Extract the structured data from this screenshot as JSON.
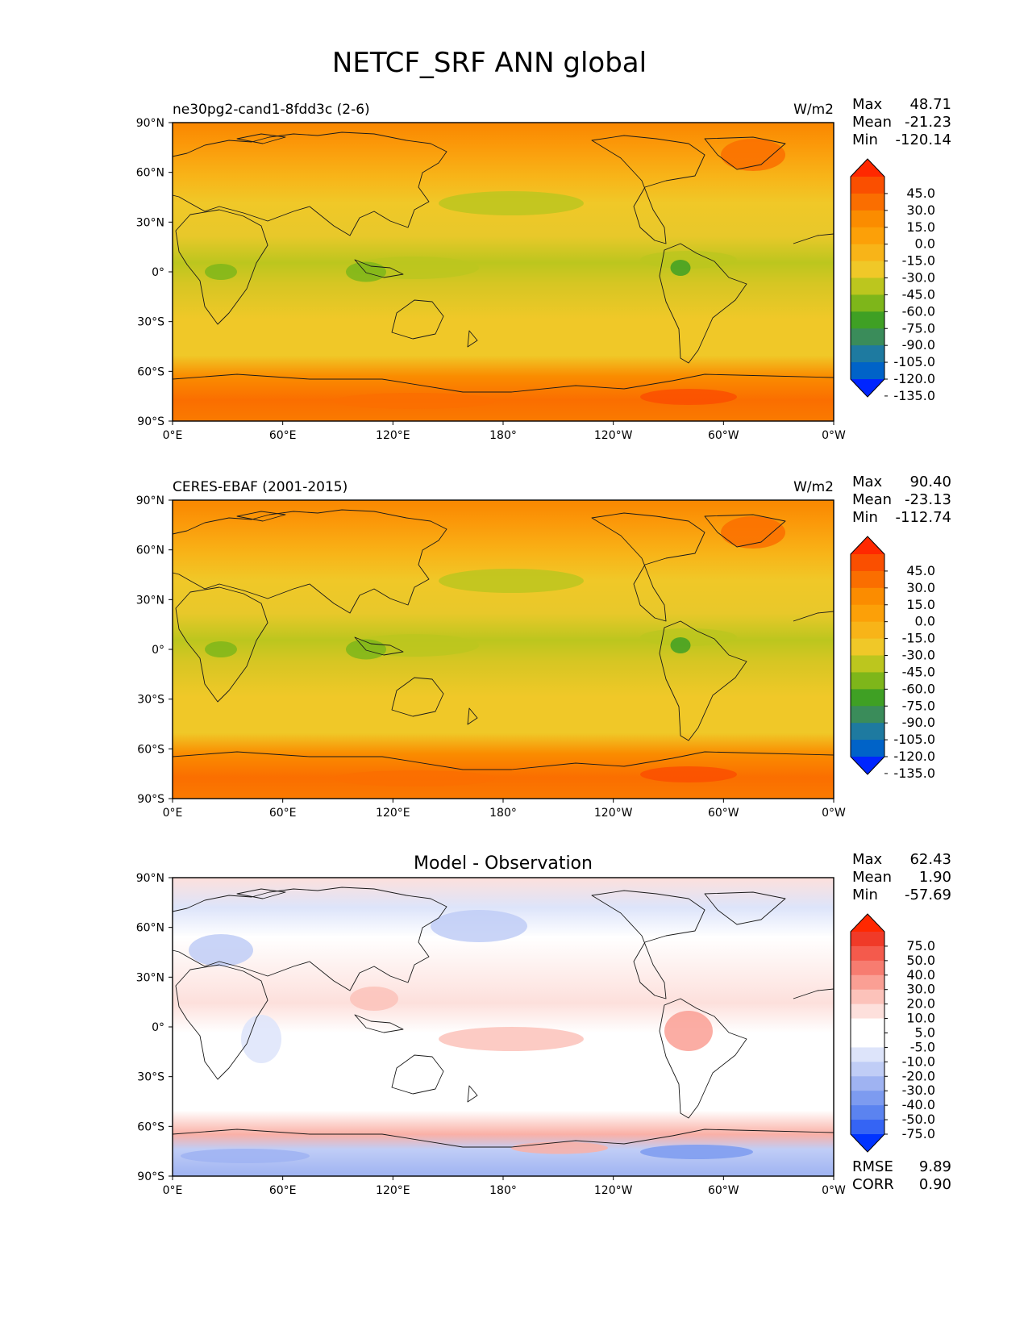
{
  "title": "NETCF_SRF ANN global",
  "lat_ticks": [
    "90°N",
    "60°N",
    "30°N",
    "0°",
    "30°S",
    "60°S",
    "90°S"
  ],
  "lon_ticks": [
    "0°E",
    "60°E",
    "120°E",
    "180°",
    "120°W",
    "60°W",
    "0°W"
  ],
  "palettes": {
    "field": [
      "#0025ff",
      "#0063c8",
      "#1e7aa0",
      "#3a8c5a",
      "#3fa024",
      "#7eb61a",
      "#bcc61e",
      "#f0c828",
      "#f8b418",
      "#fca008",
      "#fb8c00",
      "#fa6e00",
      "#fa4f00",
      "#ff2800"
    ],
    "diff": [
      "#0033ff",
      "#3564f4",
      "#5b83f0",
      "#7d9bf0",
      "#9fb3f2",
      "#c0cdf6",
      "#dde4fa",
      "#ffffff",
      "#ffffff",
      "#fde0dc",
      "#fcc2ba",
      "#fa9f94",
      "#f77c70",
      "#f45a4c",
      "#f03a28",
      "#ff2800"
    ]
  },
  "panels": [
    {
      "left_title": "ne30pg2-cand1-8fdd3c (2-6)",
      "center_title": "",
      "units": "W/m2",
      "stats": [
        {
          "label": "Max",
          "value": "48.71"
        },
        {
          "label": "Mean",
          "value": "-21.23"
        },
        {
          "label": "Min",
          "value": "-120.14"
        }
      ],
      "colorbar_labels": [
        "45.0",
        "30.0",
        "15.0",
        "0.0",
        "-15.0",
        "-30.0",
        "-45.0",
        "-60.0",
        "-75.0",
        "-90.0",
        "-105.0",
        "-120.0",
        "-135.0"
      ],
      "footer_stats": []
    },
    {
      "left_title": "CERES-EBAF (2001-2015)",
      "center_title": "",
      "units": "W/m2",
      "stats": [
        {
          "label": "Max",
          "value": "90.40"
        },
        {
          "label": "Mean",
          "value": "-23.13"
        },
        {
          "label": "Min",
          "value": "-112.74"
        }
      ],
      "colorbar_labels": [
        "45.0",
        "30.0",
        "15.0",
        "0.0",
        "-15.0",
        "-30.0",
        "-45.0",
        "-60.0",
        "-75.0",
        "-90.0",
        "-105.0",
        "-120.0",
        "-135.0"
      ],
      "footer_stats": []
    },
    {
      "left_title": "",
      "center_title": "Model - Observation",
      "units": "",
      "stats": [
        {
          "label": "Max",
          "value": "62.43"
        },
        {
          "label": "Mean",
          "value": "1.90"
        },
        {
          "label": "Min",
          "value": "-57.69"
        }
      ],
      "colorbar_labels": [
        "75.0",
        "50.0",
        "40.0",
        "30.0",
        "20.0",
        "10.0",
        "5.0",
        "-5.0",
        "-10.0",
        "-20.0",
        "-30.0",
        "-40.0",
        "-50.0",
        "-75.0"
      ],
      "footer_stats": [
        {
          "label": "RMSE",
          "value": "9.89"
        },
        {
          "label": "CORR",
          "value": "0.90"
        }
      ]
    }
  ]
}
